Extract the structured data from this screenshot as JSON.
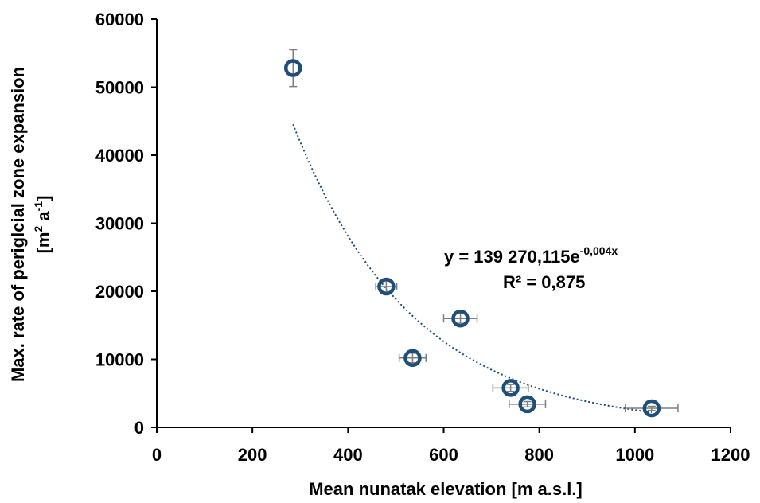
{
  "chart_data": {
    "type": "scatter",
    "xlabel": "Mean nunatak elevation [m a.s.l.]",
    "ylabel_line1": "Max. rate of periglcial zone expansion",
    "ylabel_line2_main": "[m",
    "ylabel_line2_sup1": "2",
    "ylabel_line2_mid": " a",
    "ylabel_line2_sup2": "-1",
    "ylabel_line2_end": "]",
    "xlim": [
      0,
      1200
    ],
    "ylim": [
      0,
      60000
    ],
    "xticks": [
      "0",
      "200",
      "400",
      "600",
      "800",
      "1000",
      "1200"
    ],
    "yticks": [
      "0",
      "10000",
      "20000",
      "30000",
      "40000",
      "50000",
      "60000"
    ],
    "grid": false,
    "points": [
      {
        "x": 285,
        "y": 52800,
        "xerr": 0,
        "yerr": 2700
      },
      {
        "x": 480,
        "y": 20700,
        "xerr": 22,
        "yerr": 800
      },
      {
        "x": 535,
        "y": 10200,
        "xerr": 28,
        "yerr": 700
      },
      {
        "x": 635,
        "y": 16000,
        "xerr": 35,
        "yerr": 700
      },
      {
        "x": 740,
        "y": 5800,
        "xerr": 37,
        "yerr": 500
      },
      {
        "x": 775,
        "y": 3400,
        "xerr": 38,
        "yerr": 400
      },
      {
        "x": 1035,
        "y": 2800,
        "xerr": 55,
        "yerr": 300
      }
    ],
    "trendline": {
      "type": "exponential",
      "a": 139270.115,
      "b": -0.004,
      "x_range": [
        285,
        1035
      ],
      "equation_main": "y = 139 270,115e",
      "equation_exp": "-0,004x",
      "r2_text": "R² = 0,875",
      "style": "dotted"
    },
    "colors": {
      "marker_edge": "#1f4e79",
      "marker_fill": "#ffffff",
      "errorbar": "#7f7f7f",
      "trendline": "#1f4e79",
      "axis": "#000000"
    }
  }
}
